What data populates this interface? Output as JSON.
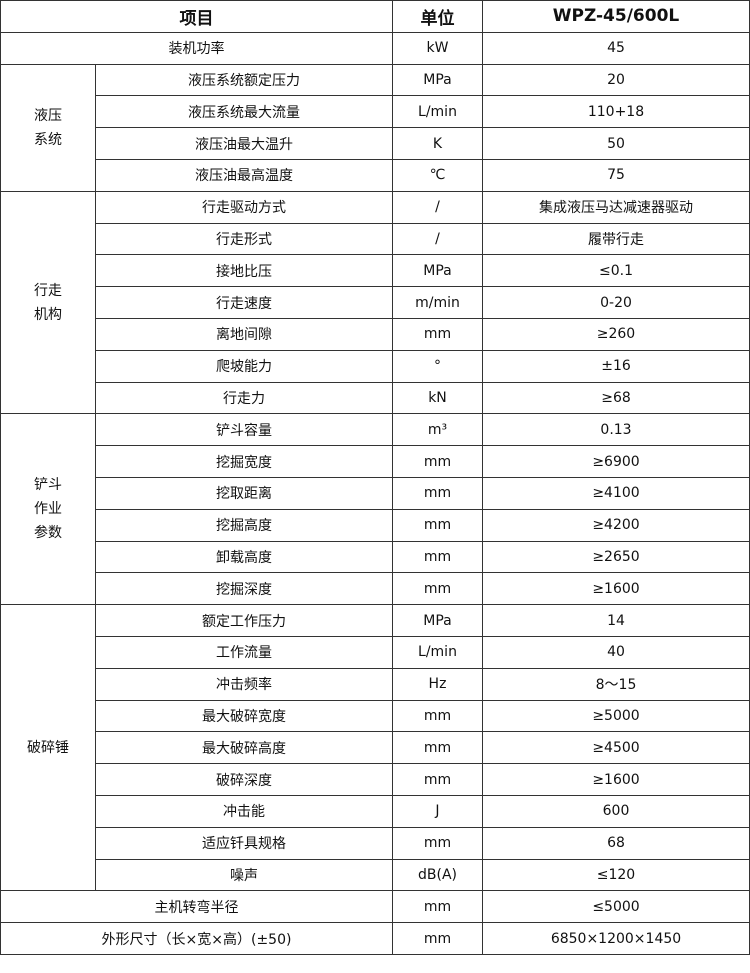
{
  "header": {
    "item": "项目",
    "unit": "单位",
    "model": "WPZ-45/600L"
  },
  "groups": [
    {
      "label": "",
      "rows": [
        {
          "param": "装机功率",
          "unit": "kW",
          "value": "45"
        }
      ]
    },
    {
      "label": "液压\n系统",
      "rows": [
        {
          "param": "液压系统额定压力",
          "unit": "MPa",
          "value": "20"
        },
        {
          "param": "液压系统最大流量",
          "unit": "L/min",
          "value": "110+18"
        },
        {
          "param": "液压油最大温升",
          "unit": "K",
          "value": "50"
        },
        {
          "param": "液压油最高温度",
          "unit": "℃",
          "value": "75"
        }
      ]
    },
    {
      "label": "行走\n机构",
      "rows": [
        {
          "param": "行走驱动方式",
          "unit": "/",
          "value": "集成液压马达减速器驱动"
        },
        {
          "param": "行走形式",
          "unit": "/",
          "value": "履带行走"
        },
        {
          "param": "接地比压",
          "unit": "MPa",
          "value": "≤0.1"
        },
        {
          "param": "行走速度",
          "unit": "m/min",
          "value": "0-20"
        },
        {
          "param": "离地间隙",
          "unit": "mm",
          "value": "≥260"
        },
        {
          "param": "爬坡能力",
          "unit": "°",
          "value": "±16"
        },
        {
          "param": "行走力",
          "unit": "kN",
          "value": "≥68"
        }
      ]
    },
    {
      "label": "铲斗\n作业\n参数",
      "rows": [
        {
          "param": "铲斗容量",
          "unit": "m³",
          "value": "0.13"
        },
        {
          "param": "挖掘宽度",
          "unit": "mm",
          "value": "≥6900"
        },
        {
          "param": "挖取距离",
          "unit": "mm",
          "value": "≥4100"
        },
        {
          "param": "挖掘高度",
          "unit": "mm",
          "value": "≥4200"
        },
        {
          "param": "卸载高度",
          "unit": "mm",
          "value": "≥2650"
        },
        {
          "param": "挖掘深度",
          "unit": "mm",
          "value": "≥1600"
        }
      ]
    },
    {
      "label": "破碎锤",
      "rows": [
        {
          "param": "额定工作压力",
          "unit": "MPa",
          "value": "14"
        },
        {
          "param": "工作流量",
          "unit": "L/min",
          "value": "40"
        },
        {
          "param": "冲击频率",
          "unit": "Hz",
          "value": "8～15"
        },
        {
          "param": "最大破碎宽度",
          "unit": "mm",
          "value": "≥5000"
        },
        {
          "param": "最大破碎高度",
          "unit": "mm",
          "value": "≥4500"
        },
        {
          "param": "破碎深度",
          "unit": "mm",
          "value": "≥1600"
        },
        {
          "param": "冲击能",
          "unit": "J",
          "value": "600"
        },
        {
          "param": "适应钎具规格",
          "unit": "mm",
          "value": "68"
        },
        {
          "param": "噪声",
          "unit": "dB(A)",
          "value": "≤120"
        }
      ]
    },
    {
      "label": "",
      "rows": [
        {
          "param": "主机转弯半径",
          "unit": "mm",
          "value": "≤5000"
        }
      ]
    },
    {
      "label": "",
      "rows": [
        {
          "param": "外形尺寸（长×宽×高）(±50)",
          "unit": "mm",
          "value": "6850×1200×1450"
        }
      ]
    }
  ]
}
